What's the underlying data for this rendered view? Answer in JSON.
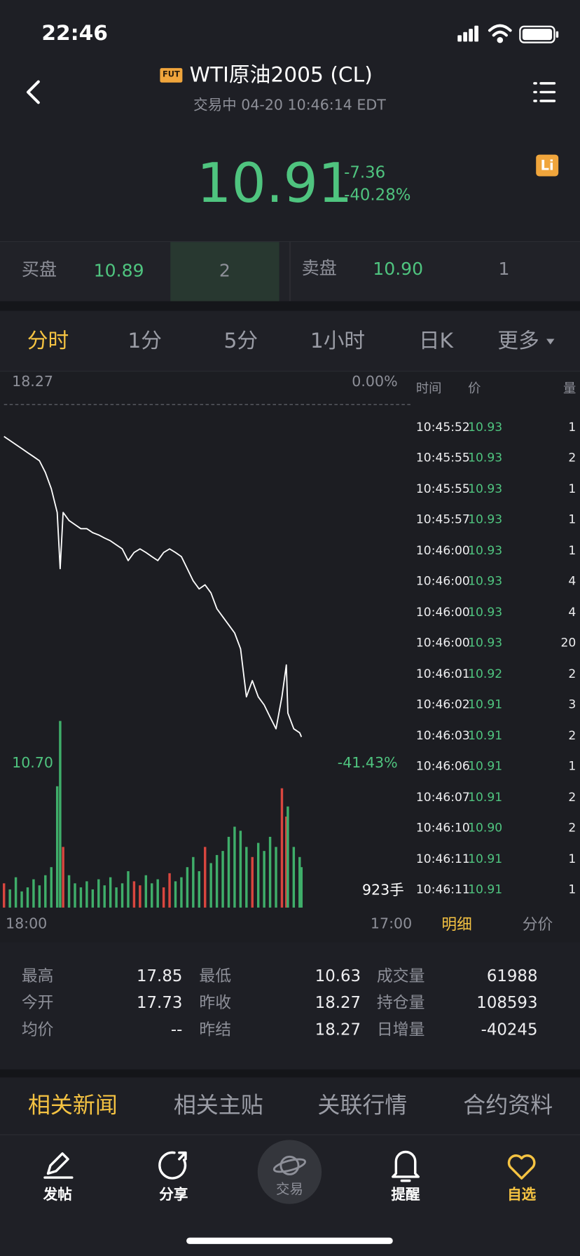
{
  "status": {
    "time": "22:46"
  },
  "header": {
    "badge": "FUT",
    "title": "WTI原油2005 (CL)",
    "subtitle": "交易中 04-20 10:46:14 EDT"
  },
  "quote": {
    "price": "10.91",
    "change": "-7.36",
    "change_pct": "-40.28%",
    "icon": "Li"
  },
  "order_book": {
    "bid_label": "买盘",
    "bid_price": "10.89",
    "bid_size": "2",
    "ask_label": "卖盘",
    "ask_price": "10.90",
    "ask_size": "1"
  },
  "tabs": [
    "分时",
    "1分",
    "5分",
    "1小时",
    "日K",
    "更多"
  ],
  "chart": {
    "type": "line",
    "x": [
      0,
      20,
      40,
      60,
      80,
      100,
      120,
      140,
      160,
      180,
      190,
      200,
      220,
      240,
      260,
      280,
      300,
      320,
      340,
      360,
      380,
      400,
      420,
      440,
      460,
      480,
      500,
      520,
      540,
      560,
      580,
      600,
      620,
      640,
      660,
      680,
      700,
      720,
      740,
      760,
      780,
      800,
      820,
      840,
      860,
      880,
      900,
      920,
      940,
      955,
      960,
      980,
      1000,
      1006
    ],
    "values": [
      17.56,
      17.47,
      17.38,
      17.29,
      17.2,
      17.11,
      17.02,
      16.76,
      16.4,
      15.87,
      14.62,
      15.87,
      15.69,
      15.6,
      15.51,
      15.51,
      15.42,
      15.37,
      15.3,
      15.24,
      15.15,
      15.06,
      14.8,
      14.98,
      15.06,
      14.98,
      14.89,
      14.8,
      14.98,
      15.06,
      14.98,
      14.89,
      14.62,
      14.35,
      14.17,
      14.26,
      14.08,
      13.73,
      13.55,
      13.37,
      13.19,
      12.84,
      11.77,
      12.13,
      11.77,
      11.59,
      11.32,
      11.06,
      11.77,
      12.48,
      11.41,
      11.06,
      10.97,
      10.88
    ],
    "volumes": [
      120,
      90,
      150,
      80,
      100,
      140,
      110,
      160,
      200,
      600,
      923,
      300,
      160,
      120,
      100,
      130,
      90,
      140,
      110,
      150,
      100,
      120,
      180,
      130,
      110,
      160,
      120,
      140,
      100,
      170,
      130,
      150,
      200,
      250,
      180,
      300,
      220,
      260,
      280,
      350,
      400,
      380,
      300,
      250,
      320,
      280,
      350,
      300,
      590,
      450,
      500,
      300,
      250,
      200
    ],
    "xlim": [
      0,
      1380
    ],
    "xticks": [
      {
        "value": 0,
        "label": "18:00"
      },
      {
        "value": 1380,
        "label": "17:00"
      }
    ],
    "ylim": [
      10.7,
      18.27
    ],
    "yticks": [
      {
        "value": 10.7,
        "label": "10.70"
      },
      18.27
    ],
    "y2lim": [
      -41.43,
      0
    ],
    "y2ticks": [
      {
        "value": -41.43,
        "label": "-41.43%"
      },
      {
        "value": 0,
        "label": "0.00%"
      }
    ],
    "volume_max": {
      "value": 923,
      "label": "923手"
    },
    "line_color": "#ffffff",
    "up_color": "#d9463f",
    "down_color": "#3fae6a"
  },
  "trades": {
    "headers": [
      "时间",
      "价",
      "量"
    ],
    "rows": [
      [
        "10:45:52",
        "10.93",
        "1"
      ],
      [
        "10:45:55",
        "10.93",
        "2"
      ],
      [
        "10:45:55",
        "10.93",
        "1"
      ],
      [
        "10:45:57",
        "10.93",
        "1"
      ],
      [
        "10:46:00",
        "10.93",
        "1"
      ],
      [
        "10:46:00",
        "10.93",
        "4"
      ],
      [
        "10:46:00",
        "10.93",
        "4"
      ],
      [
        "10:46:00",
        "10.93",
        "20"
      ],
      [
        "10:46:01",
        "10.92",
        "2"
      ],
      [
        "10:46:02",
        "10.91",
        "3"
      ],
      [
        "10:46:03",
        "10.91",
        "2"
      ],
      [
        "10:46:06",
        "10.91",
        "1"
      ],
      [
        "10:46:07",
        "10.91",
        "2"
      ],
      [
        "10:46:10",
        "10.90",
        "2"
      ],
      [
        "10:46:11",
        "10.91",
        "1"
      ],
      [
        "10:46:11",
        "10.91",
        "1"
      ]
    ],
    "tabs": [
      "明细",
      "分价"
    ]
  },
  "stats": {
    "rows": [
      [
        {
          "label": "最高",
          "value": "17.85"
        },
        {
          "label": "最低",
          "value": "10.63"
        },
        {
          "label": "成交量",
          "value": "61988"
        }
      ],
      [
        {
          "label": "今开",
          "value": "17.73"
        },
        {
          "label": "昨收",
          "value": "18.27"
        },
        {
          "label": "持仓量",
          "value": "108593"
        }
      ],
      [
        {
          "label": "均价",
          "value": "--"
        },
        {
          "label": "昨结",
          "value": "18.27"
        },
        {
          "label": "日增量",
          "value": "-40245"
        }
      ]
    ]
  },
  "news_tabs": [
    "相关新闻",
    "相关主贴",
    "关联行情",
    "合约资料"
  ],
  "nav": [
    "发帖",
    "分享",
    "交易",
    "提醒",
    "自选"
  ]
}
